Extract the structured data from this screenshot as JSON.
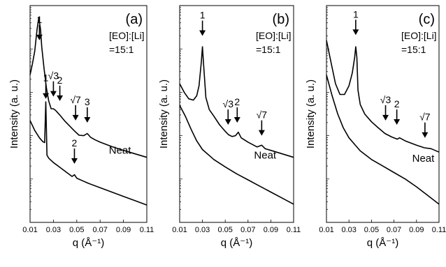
{
  "chart_data": [
    {
      "type": "line",
      "panel_label": "(a)",
      "annotation": [
        "[EO]:[Li]",
        "=15:1"
      ],
      "xlabel": "q (Å⁻¹)",
      "ylabel": "Intensity (a. u.)",
      "y_scale": "log",
      "xlim": [
        0.01,
        0.11
      ],
      "xticks": [
        "0.01",
        "0.03",
        "0.05",
        "0.07",
        "0.09",
        "0.11"
      ],
      "series": [
        {
          "x": [
            0.01,
            0.012,
            0.014,
            0.016,
            0.0175,
            0.019,
            0.02,
            0.022,
            0.024,
            0.026,
            0.028,
            0.03,
            0.032,
            0.034,
            0.036,
            0.04,
            0.044,
            0.048,
            0.052,
            0.056,
            0.059,
            0.062,
            0.066,
            0.07,
            0.08,
            0.09,
            0.1,
            0.11
          ],
          "y": [
            3.4,
            3.65,
            3.95,
            4.45,
            4.72,
            4.45,
            4.05,
            3.55,
            3.1,
            2.8,
            2.62,
            2.62,
            2.58,
            2.52,
            2.46,
            2.33,
            2.22,
            2.11,
            2.01,
            2.0,
            2.05,
            1.96,
            1.9,
            1.85,
            1.75,
            1.66,
            1.58,
            1.5
          ]
        },
        {
          "name": "Neat",
          "x": [
            0.01,
            0.014,
            0.018,
            0.021,
            0.0225,
            0.0235,
            0.0245,
            0.026,
            0.03,
            0.035,
            0.04,
            0.046,
            0.048,
            0.05,
            0.055,
            0.06,
            0.07,
            0.08,
            0.09,
            0.1,
            0.11
          ],
          "y": [
            2.35,
            2.12,
            1.95,
            1.86,
            1.84,
            2.78,
            1.55,
            1.48,
            1.38,
            1.28,
            1.18,
            1.06,
            1.1,
            1.02,
            0.96,
            0.9,
            0.8,
            0.7,
            0.6,
            0.5,
            0.4
          ]
        }
      ],
      "peak_labels": [
        {
          "text": "1",
          "x": 0.018,
          "y": 4.2
        },
        {
          "text": "√3",
          "x": 0.03,
          "y": 2.9
        },
        {
          "text": "2",
          "x": 0.0355,
          "y": 2.8
        },
        {
          "text": "√7",
          "x": 0.049,
          "y": 2.35
        },
        {
          "text": "3",
          "x": 0.059,
          "y": 2.3
        },
        {
          "text": "1",
          "x": 0.0235,
          "y": 2.85
        },
        {
          "text": "2",
          "x": 0.048,
          "y": 1.35
        }
      ],
      "legend": [
        {
          "text": "Neat",
          "x": 0.087,
          "y": 1.58
        }
      ]
    },
    {
      "type": "line",
      "panel_label": "(b)",
      "annotation": [
        "[EO]:[Li]",
        "=15:1"
      ],
      "xlabel": "q (Å⁻¹)",
      "ylabel": "Intensity (a. u.)",
      "y_scale": "log",
      "xlim": [
        0.01,
        0.11
      ],
      "xticks": [
        "0.01",
        "0.03",
        "0.05",
        "0.07",
        "0.09",
        "0.11"
      ],
      "series": [
        {
          "x": [
            0.01,
            0.014,
            0.018,
            0.022,
            0.025,
            0.027,
            0.029,
            0.03,
            0.031,
            0.033,
            0.036,
            0.04,
            0.045,
            0.05,
            0.053,
            0.056,
            0.059,
            0.0615,
            0.064,
            0.07,
            0.078,
            0.082,
            0.085,
            0.09,
            0.1,
            0.11
          ],
          "y": [
            3.2,
            3.0,
            2.85,
            2.82,
            2.92,
            3.15,
            3.7,
            4.05,
            3.65,
            2.88,
            2.6,
            2.45,
            2.25,
            2.1,
            2.02,
            1.98,
            2.0,
            2.08,
            1.95,
            1.85,
            1.74,
            1.78,
            1.7,
            1.66,
            1.58,
            1.5
          ]
        },
        {
          "name": "Neat",
          "x": [
            0.01,
            0.015,
            0.02,
            0.025,
            0.03,
            0.04,
            0.05,
            0.06,
            0.07,
            0.08,
            0.09,
            0.1,
            0.11
          ],
          "y": [
            2.7,
            2.45,
            2.15,
            1.88,
            1.68,
            1.45,
            1.28,
            1.12,
            0.98,
            0.84,
            0.7,
            0.56,
            0.42
          ]
        }
      ],
      "peak_labels": [
        {
          "text": "1",
          "x": 0.03,
          "y": 4.3
        },
        {
          "text": "√3",
          "x": 0.0525,
          "y": 2.25
        },
        {
          "text": "2",
          "x": 0.0605,
          "y": 2.3
        },
        {
          "text": "√7",
          "x": 0.082,
          "y": 2.0
        }
      ],
      "legend": [
        {
          "text": "Neat",
          "x": 0.085,
          "y": 1.47
        }
      ]
    },
    {
      "type": "line",
      "panel_label": "(c)",
      "annotation": [
        "[EO]:[Li]",
        "=15:1"
      ],
      "xlabel": "q (Å⁻¹)",
      "ylabel": "Intensity (a. u.)",
      "y_scale": "log",
      "xlim": [
        0.01,
        0.11
      ],
      "xticks": [
        "0.01",
        "0.03",
        "0.05",
        "0.07",
        "0.09",
        "0.11"
      ],
      "series": [
        {
          "x": [
            0.01,
            0.014,
            0.018,
            0.022,
            0.026,
            0.03,
            0.033,
            0.035,
            0.036,
            0.037,
            0.038,
            0.04,
            0.044,
            0.05,
            0.056,
            0.062,
            0.068,
            0.073,
            0.075,
            0.08,
            0.09,
            0.097,
            0.103,
            0.11
          ],
          "y": [
            4.2,
            3.7,
            3.2,
            2.95,
            2.95,
            3.15,
            3.45,
            3.8,
            4.05,
            3.8,
            3.05,
            2.72,
            2.5,
            2.32,
            2.18,
            2.05,
            1.97,
            1.92,
            1.95,
            1.88,
            1.78,
            1.72,
            1.7,
            1.62
          ]
        },
        {
          "name": "Neat",
          "x": [
            0.01,
            0.015,
            0.02,
            0.025,
            0.03,
            0.04,
            0.05,
            0.06,
            0.07,
            0.08,
            0.09,
            0.1,
            0.11
          ],
          "y": [
            3.4,
            2.92,
            2.5,
            2.18,
            1.95,
            1.65,
            1.45,
            1.3,
            1.15,
            1.0,
            0.82,
            0.62,
            0.42
          ]
        }
      ],
      "peak_labels": [
        {
          "text": "1",
          "x": 0.036,
          "y": 4.32
        },
        {
          "text": "√3",
          "x": 0.0625,
          "y": 2.35
        },
        {
          "text": "2",
          "x": 0.0725,
          "y": 2.25
        },
        {
          "text": "√7",
          "x": 0.0975,
          "y": 1.95
        }
      ],
      "legend": [
        {
          "text": "Neat",
          "x": 0.096,
          "y": 1.4
        }
      ]
    }
  ]
}
